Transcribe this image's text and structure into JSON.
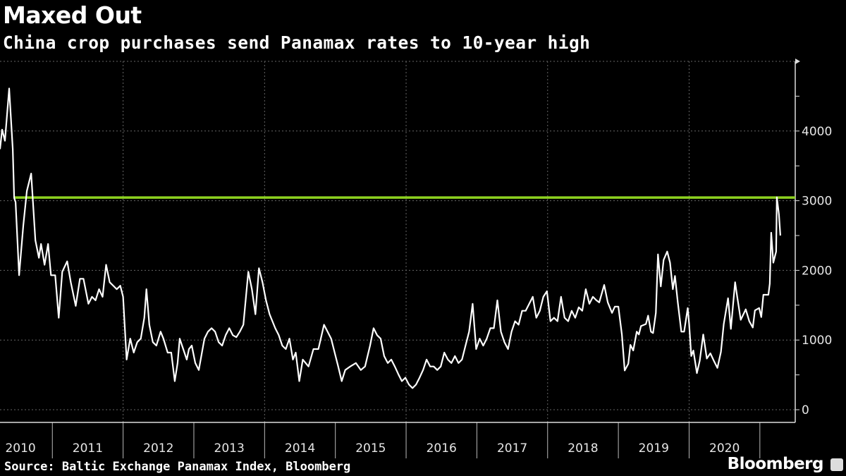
{
  "header": {
    "title": "Maxed Out",
    "subtitle": "China crop purchases send Panamax rates to 10-year high"
  },
  "footer": {
    "source": "Source: Baltic Exchange Panamax Index, Bloomberg",
    "brand": "Bloomberg"
  },
  "colors": {
    "background": "#000000",
    "line": "#ffffff",
    "reference": "#8dd11f",
    "grid": "#666666"
  },
  "chart_data": {
    "type": "line",
    "title": "Maxed Out",
    "subtitle": "China crop purchases send Panamax rates to 10-year high",
    "xlabel": "",
    "ylabel": "",
    "xlim": [
      2010.26,
      2021.5
    ],
    "ylim": [
      0,
      5000
    ],
    "y_ticks": [
      0,
      1000,
      2000,
      3000,
      4000
    ],
    "y_tick_labels": [
      "0",
      "1000",
      "2000",
      "3000",
      "4000"
    ],
    "x_tick_labels": [
      "2010",
      "2011",
      "2012",
      "2013",
      "2014",
      "2015",
      "2016",
      "2017",
      "2018",
      "2019",
      "2020"
    ],
    "grid": true,
    "reference_line": {
      "value": 3045,
      "label": "10-year high"
    },
    "series": [
      {
        "name": "Baltic Exchange Panamax Index",
        "points": [
          [
            2010.26,
            3740
          ],
          [
            2010.29,
            4020
          ],
          [
            2010.33,
            3860
          ],
          [
            2010.39,
            4610
          ],
          [
            2010.44,
            3740
          ],
          [
            2010.46,
            3040
          ],
          [
            2010.48,
            2980
          ],
          [
            2010.53,
            1930
          ],
          [
            2010.59,
            2650
          ],
          [
            2010.64,
            3140
          ],
          [
            2010.7,
            3390
          ],
          [
            2010.76,
            2430
          ],
          [
            2010.81,
            2180
          ],
          [
            2010.84,
            2380
          ],
          [
            2010.89,
            2080
          ],
          [
            2010.94,
            2380
          ],
          [
            2010.98,
            1930
          ],
          [
            2011.04,
            1930
          ],
          [
            2011.09,
            1320
          ],
          [
            2011.14,
            1980
          ],
          [
            2011.21,
            2130
          ],
          [
            2011.26,
            1830
          ],
          [
            2011.33,
            1490
          ],
          [
            2011.39,
            1880
          ],
          [
            2011.44,
            1880
          ],
          [
            2011.51,
            1520
          ],
          [
            2011.56,
            1620
          ],
          [
            2011.61,
            1570
          ],
          [
            2011.66,
            1730
          ],
          [
            2011.71,
            1620
          ],
          [
            2011.76,
            2080
          ],
          [
            2011.81,
            1830
          ],
          [
            2011.86,
            1780
          ],
          [
            2011.91,
            1730
          ],
          [
            2011.96,
            1780
          ],
          [
            2012.0,
            1620
          ],
          [
            2012.05,
            720
          ],
          [
            2012.1,
            1020
          ],
          [
            2012.15,
            820
          ],
          [
            2012.2,
            970
          ],
          [
            2012.25,
            1020
          ],
          [
            2012.3,
            1320
          ],
          [
            2012.33,
            1730
          ],
          [
            2012.37,
            1220
          ],
          [
            2012.42,
            970
          ],
          [
            2012.47,
            920
          ],
          [
            2012.53,
            1120
          ],
          [
            2012.57,
            1020
          ],
          [
            2012.63,
            820
          ],
          [
            2012.68,
            820
          ],
          [
            2012.73,
            410
          ],
          [
            2012.77,
            670
          ],
          [
            2012.8,
            1020
          ],
          [
            2012.85,
            870
          ],
          [
            2012.9,
            720
          ],
          [
            2012.93,
            870
          ],
          [
            2012.97,
            920
          ],
          [
            2013.02,
            670
          ],
          [
            2013.07,
            570
          ],
          [
            2013.1,
            740
          ],
          [
            2013.15,
            1020
          ],
          [
            2013.2,
            1120
          ],
          [
            2013.25,
            1170
          ],
          [
            2013.3,
            1120
          ],
          [
            2013.35,
            970
          ],
          [
            2013.4,
            920
          ],
          [
            2013.45,
            1070
          ],
          [
            2013.5,
            1170
          ],
          [
            2013.55,
            1070
          ],
          [
            2013.6,
            1040
          ],
          [
            2013.65,
            1120
          ],
          [
            2013.7,
            1220
          ],
          [
            2013.77,
            1980
          ],
          [
            2013.82,
            1730
          ],
          [
            2013.87,
            1370
          ],
          [
            2013.92,
            2030
          ],
          [
            2013.97,
            1830
          ],
          [
            2014.02,
            1570
          ],
          [
            2014.07,
            1370
          ],
          [
            2014.15,
            1170
          ],
          [
            2014.2,
            1070
          ],
          [
            2014.25,
            920
          ],
          [
            2014.3,
            870
          ],
          [
            2014.35,
            1020
          ],
          [
            2014.4,
            720
          ],
          [
            2014.44,
            820
          ],
          [
            2014.49,
            410
          ],
          [
            2014.54,
            720
          ],
          [
            2014.62,
            620
          ],
          [
            2014.69,
            870
          ],
          [
            2014.76,
            870
          ],
          [
            2014.84,
            1220
          ],
          [
            2014.89,
            1120
          ],
          [
            2014.94,
            1020
          ],
          [
            2014.99,
            820
          ],
          [
            2015.04,
            620
          ],
          [
            2015.09,
            410
          ],
          [
            2015.14,
            570
          ],
          [
            2015.21,
            620
          ],
          [
            2015.29,
            670
          ],
          [
            2015.36,
            570
          ],
          [
            2015.42,
            620
          ],
          [
            2015.49,
            920
          ],
          [
            2015.54,
            1170
          ],
          [
            2015.59,
            1070
          ],
          [
            2015.64,
            1020
          ],
          [
            2015.69,
            770
          ],
          [
            2015.74,
            670
          ],
          [
            2015.79,
            720
          ],
          [
            2015.84,
            620
          ],
          [
            2015.89,
            510
          ],
          [
            2015.94,
            410
          ],
          [
            2015.99,
            460
          ],
          [
            2016.04,
            360
          ],
          [
            2016.09,
            310
          ],
          [
            2016.14,
            360
          ],
          [
            2016.19,
            460
          ],
          [
            2016.24,
            570
          ],
          [
            2016.29,
            720
          ],
          [
            2016.34,
            620
          ],
          [
            2016.39,
            620
          ],
          [
            2016.44,
            570
          ],
          [
            2016.49,
            620
          ],
          [
            2016.54,
            820
          ],
          [
            2016.59,
            720
          ],
          [
            2016.64,
            670
          ],
          [
            2016.69,
            770
          ],
          [
            2016.74,
            670
          ],
          [
            2016.79,
            720
          ],
          [
            2016.84,
            920
          ],
          [
            2016.89,
            1120
          ],
          [
            2016.94,
            1520
          ],
          [
            2016.99,
            870
          ],
          [
            2017.04,
            1020
          ],
          [
            2017.09,
            920
          ],
          [
            2017.14,
            1020
          ],
          [
            2017.19,
            1170
          ],
          [
            2017.24,
            1170
          ],
          [
            2017.29,
            1570
          ],
          [
            2017.34,
            1120
          ],
          [
            2017.39,
            970
          ],
          [
            2017.44,
            870
          ],
          [
            2017.49,
            1120
          ],
          [
            2017.54,
            1270
          ],
          [
            2017.59,
            1220
          ],
          [
            2017.64,
            1420
          ],
          [
            2017.69,
            1420
          ],
          [
            2017.74,
            1520
          ],
          [
            2017.79,
            1620
          ],
          [
            2017.84,
            1320
          ],
          [
            2017.89,
            1420
          ],
          [
            2017.94,
            1620
          ],
          [
            2017.99,
            1700
          ],
          [
            2018.04,
            1270
          ],
          [
            2018.09,
            1320
          ],
          [
            2018.14,
            1270
          ],
          [
            2018.19,
            1620
          ],
          [
            2018.24,
            1320
          ],
          [
            2018.29,
            1270
          ],
          [
            2018.34,
            1420
          ],
          [
            2018.39,
            1320
          ],
          [
            2018.44,
            1470
          ],
          [
            2018.49,
            1420
          ],
          [
            2018.54,
            1730
          ],
          [
            2018.59,
            1520
          ],
          [
            2018.64,
            1620
          ],
          [
            2018.69,
            1570
          ],
          [
            2018.73,
            1540
          ],
          [
            2018.8,
            1790
          ],
          [
            2018.85,
            1540
          ],
          [
            2018.91,
            1390
          ],
          [
            2018.95,
            1480
          ],
          [
            2019.0,
            1480
          ],
          [
            2019.05,
            1080
          ],
          [
            2019.09,
            563
          ],
          [
            2019.14,
            660
          ],
          [
            2019.17,
            930
          ],
          [
            2019.21,
            850
          ],
          [
            2019.26,
            1120
          ],
          [
            2019.29,
            1080
          ],
          [
            2019.32,
            1200
          ],
          [
            2019.39,
            1230
          ],
          [
            2019.42,
            1350
          ],
          [
            2019.46,
            1120
          ],
          [
            2019.49,
            1100
          ],
          [
            2019.53,
            1390
          ],
          [
            2019.56,
            2230
          ],
          [
            2019.6,
            1770
          ],
          [
            2019.64,
            2150
          ],
          [
            2019.69,
            2270
          ],
          [
            2019.73,
            2110
          ],
          [
            2019.77,
            1730
          ],
          [
            2019.8,
            1920
          ],
          [
            2019.84,
            1540
          ],
          [
            2019.89,
            1120
          ],
          [
            2019.93,
            1120
          ],
          [
            2019.98,
            1460
          ],
          [
            2020.0,
            1230
          ],
          [
            2020.03,
            770
          ],
          [
            2020.06,
            850
          ],
          [
            2020.11,
            525
          ],
          [
            2020.15,
            700
          ],
          [
            2020.2,
            1080
          ],
          [
            2020.25,
            735
          ],
          [
            2020.3,
            810
          ],
          [
            2020.35,
            700
          ],
          [
            2020.4,
            600
          ],
          [
            2020.45,
            830
          ],
          [
            2020.49,
            1230
          ],
          [
            2020.55,
            1600
          ],
          [
            2020.59,
            1160
          ],
          [
            2020.65,
            1830
          ],
          [
            2020.68,
            1620
          ],
          [
            2020.73,
            1290
          ],
          [
            2020.8,
            1440
          ],
          [
            2020.85,
            1270
          ],
          [
            2020.9,
            1180
          ],
          [
            2020.93,
            1425
          ],
          [
            2020.99,
            1460
          ],
          [
            2021.02,
            1330
          ],
          [
            2021.05,
            1650
          ],
          [
            2021.12,
            1650
          ],
          [
            2021.14,
            1810
          ],
          [
            2021.16,
            2540
          ],
          [
            2021.19,
            2110
          ],
          [
            2021.23,
            2270
          ],
          [
            2021.24,
            3050
          ],
          [
            2021.27,
            2800
          ],
          [
            2021.29,
            2500
          ]
        ]
      }
    ]
  }
}
